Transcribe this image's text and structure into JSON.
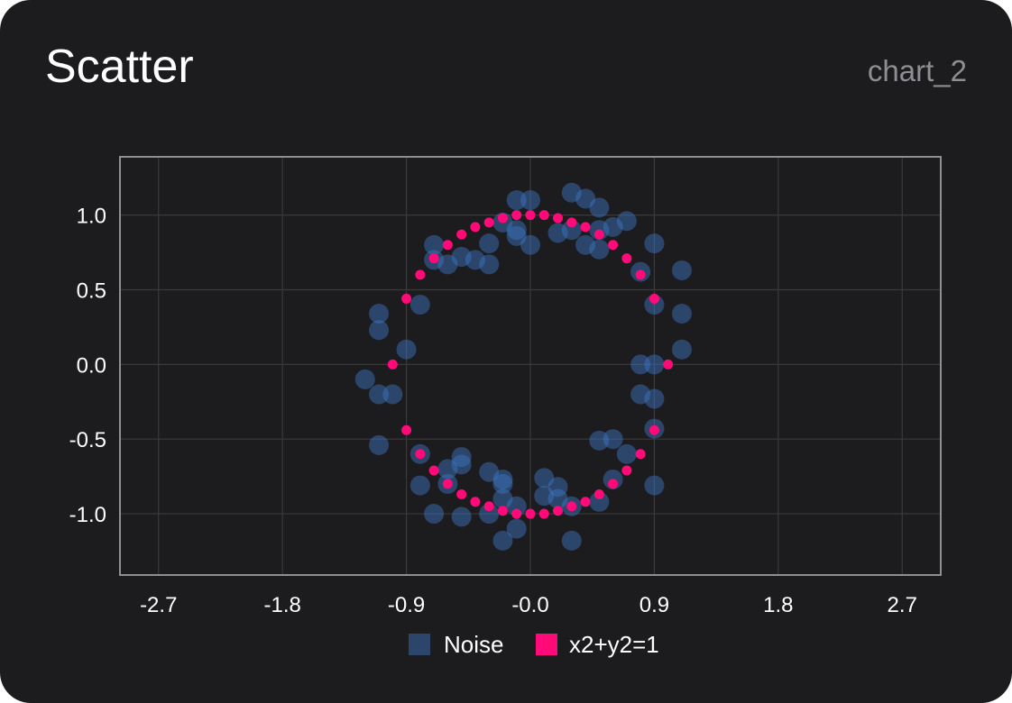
{
  "card": {
    "title": "Scatter",
    "chart_id": "chart_2"
  },
  "colors": {
    "background": "#1c1c1e",
    "grid": "#3a3a3c",
    "frame": "#8e8e93",
    "noise": "#3f78c9",
    "circle": "#ff0a78"
  },
  "chart_data": {
    "type": "scatter",
    "title": "",
    "xlabel": "",
    "ylabel": "",
    "xlim": [
      -2.98,
      2.98
    ],
    "ylim": [
      -1.41,
      1.39
    ],
    "x_ticks": [
      -2.7,
      -1.8,
      -0.9,
      0.0,
      0.9,
      1.8,
      2.7
    ],
    "x_tick_labels": [
      "-2.7",
      "-1.8",
      "-0.9",
      "-0.0",
      "0.9",
      "1.8",
      "2.7"
    ],
    "y_ticks": [
      1.0,
      0.5,
      0.0,
      -0.5,
      -1.0
    ],
    "y_tick_labels": [
      "1.0",
      "0.5",
      "0.0",
      "-0.5",
      "-1.0"
    ],
    "grid": true,
    "legend_position": "bottom-center",
    "series": [
      {
        "name": "Noise",
        "color": "#3f78c9",
        "points": [
          [
            -0.1,
            1.1
          ],
          [
            0.0,
            1.1
          ],
          [
            0.3,
            1.15
          ],
          [
            0.4,
            1.11
          ],
          [
            0.5,
            1.05
          ],
          [
            -0.2,
            0.95
          ],
          [
            -0.1,
            0.86
          ],
          [
            -0.1,
            0.9
          ],
          [
            0.0,
            0.8
          ],
          [
            0.2,
            0.88
          ],
          [
            0.3,
            0.9
          ],
          [
            0.4,
            0.8
          ],
          [
            0.5,
            0.9
          ],
          [
            0.5,
            0.77
          ],
          [
            0.6,
            0.92
          ],
          [
            0.7,
            0.96
          ],
          [
            0.8,
            0.62
          ],
          [
            0.9,
            0.81
          ],
          [
            1.1,
            0.63
          ],
          [
            -0.7,
            0.8
          ],
          [
            -0.7,
            0.7
          ],
          [
            -0.6,
            0.67
          ],
          [
            -0.5,
            0.72
          ],
          [
            -0.4,
            0.7
          ],
          [
            -0.3,
            0.67
          ],
          [
            -0.3,
            0.81
          ],
          [
            0.9,
            0.4
          ],
          [
            1.1,
            0.34
          ],
          [
            1.1,
            0.1
          ],
          [
            0.8,
            0.0
          ],
          [
            0.9,
            0.0
          ],
          [
            0.8,
            -0.2
          ],
          [
            0.9,
            -0.23
          ],
          [
            0.9,
            -0.43
          ],
          [
            -0.8,
            0.4
          ],
          [
            -1.1,
            0.34
          ],
          [
            -1.1,
            0.23
          ],
          [
            -0.9,
            0.1
          ],
          [
            -1.2,
            -0.1
          ],
          [
            -1.1,
            -0.2
          ],
          [
            -1.0,
            -0.2
          ],
          [
            -1.1,
            -0.54
          ],
          [
            0.5,
            -0.51
          ],
          [
            0.6,
            -0.5
          ],
          [
            0.7,
            -0.6
          ],
          [
            0.6,
            -0.77
          ],
          [
            0.9,
            -0.81
          ],
          [
            0.5,
            -0.92
          ],
          [
            -0.8,
            -0.6
          ],
          [
            -0.6,
            -0.7
          ],
          [
            -0.5,
            -0.62
          ],
          [
            -0.5,
            -0.67
          ],
          [
            -0.6,
            -0.8
          ],
          [
            -0.8,
            -0.81
          ],
          [
            -0.7,
            -1.0
          ],
          [
            -0.5,
            -1.02
          ],
          [
            -0.3,
            -0.72
          ],
          [
            -0.2,
            -0.77
          ],
          [
            -0.2,
            -0.8
          ],
          [
            -0.2,
            -0.9
          ],
          [
            -0.3,
            -1.0
          ],
          [
            -0.1,
            -0.95
          ],
          [
            -0.1,
            -1.1
          ],
          [
            -0.2,
            -1.18
          ],
          [
            0.1,
            -0.76
          ],
          [
            0.1,
            -0.88
          ],
          [
            0.2,
            -0.82
          ],
          [
            0.2,
            -0.9
          ],
          [
            0.3,
            -0.95
          ],
          [
            0.3,
            -1.18
          ]
        ]
      },
      {
        "name": "x2+y2=1",
        "color": "#ff0a78",
        "points": [
          [
            1.0,
            0.0
          ],
          [
            0.9,
            0.44
          ],
          [
            0.8,
            0.6
          ],
          [
            0.7,
            0.71
          ],
          [
            0.6,
            0.8
          ],
          [
            0.5,
            0.87
          ],
          [
            0.4,
            0.92
          ],
          [
            0.3,
            0.95
          ],
          [
            0.2,
            0.98
          ],
          [
            0.1,
            1.0
          ],
          [
            0.0,
            1.0
          ],
          [
            -0.1,
            1.0
          ],
          [
            -0.2,
            0.98
          ],
          [
            -0.3,
            0.95
          ],
          [
            -0.4,
            0.92
          ],
          [
            -0.5,
            0.87
          ],
          [
            -0.6,
            0.8
          ],
          [
            -0.7,
            0.71
          ],
          [
            -0.8,
            0.6
          ],
          [
            -0.9,
            0.44
          ],
          [
            -1.0,
            0.0
          ],
          [
            -0.9,
            -0.44
          ],
          [
            -0.8,
            -0.6
          ],
          [
            -0.7,
            -0.71
          ],
          [
            -0.6,
            -0.8
          ],
          [
            -0.5,
            -0.87
          ],
          [
            -0.4,
            -0.92
          ],
          [
            -0.3,
            -0.95
          ],
          [
            -0.2,
            -0.98
          ],
          [
            -0.1,
            -1.0
          ],
          [
            0.0,
            -1.0
          ],
          [
            0.1,
            -1.0
          ],
          [
            0.2,
            -0.98
          ],
          [
            0.3,
            -0.95
          ],
          [
            0.4,
            -0.92
          ],
          [
            0.5,
            -0.87
          ],
          [
            0.6,
            -0.8
          ],
          [
            0.7,
            -0.71
          ],
          [
            0.8,
            -0.6
          ],
          [
            0.9,
            -0.44
          ]
        ]
      }
    ]
  }
}
